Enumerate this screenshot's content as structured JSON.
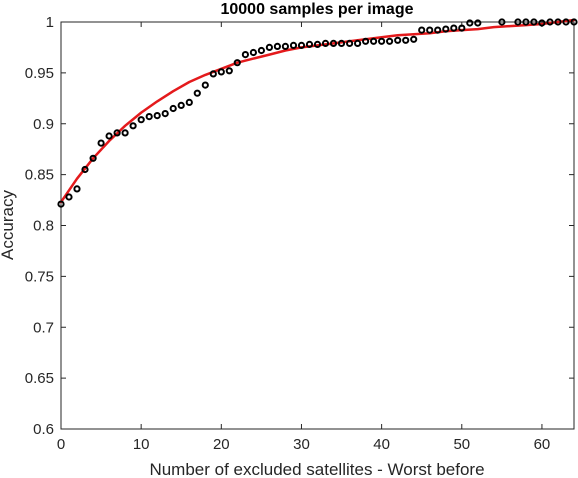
{
  "chart_data": {
    "type": "scatter",
    "title": "10000 samples per image",
    "xlabel": "Number of excluded satellites - Worst before",
    "ylabel": "Accuracy",
    "xlim": [
      0,
      64
    ],
    "ylim": [
      0.6,
      1.0
    ],
    "xticks": [
      "0",
      "10",
      "20",
      "30",
      "40",
      "50",
      "60"
    ],
    "yticks": [
      "0.6",
      "0.65",
      "0.7",
      "0.75",
      "0.8",
      "0.85",
      "0.9",
      "0.95",
      "1"
    ],
    "grid": false,
    "box": true,
    "series": [
      {
        "kind": "markers",
        "marker": "circle",
        "color": "#000000",
        "x": [
          0,
          1,
          2,
          3,
          4,
          5,
          6,
          7,
          8,
          9,
          10,
          11,
          12,
          13,
          14,
          15,
          16,
          17,
          18,
          19,
          20,
          21,
          22,
          23,
          24,
          25,
          26,
          27,
          28,
          29,
          30,
          31,
          32,
          33,
          34,
          35,
          36,
          37,
          38,
          39,
          40,
          41,
          42,
          43,
          44,
          45,
          46,
          47,
          48,
          49,
          50,
          51,
          52,
          55,
          57,
          58,
          59,
          60,
          61,
          62,
          63,
          64
        ],
        "y": [
          0.821,
          0.828,
          0.836,
          0.855,
          0.866,
          0.881,
          0.888,
          0.891,
          0.891,
          0.898,
          0.904,
          0.907,
          0.908,
          0.91,
          0.915,
          0.918,
          0.921,
          0.93,
          0.938,
          0.949,
          0.951,
          0.952,
          0.96,
          0.968,
          0.97,
          0.972,
          0.975,
          0.976,
          0.976,
          0.977,
          0.977,
          0.978,
          0.978,
          0.979,
          0.979,
          0.979,
          0.979,
          0.979,
          0.981,
          0.981,
          0.981,
          0.981,
          0.982,
          0.982,
          0.983,
          0.992,
          0.992,
          0.992,
          0.993,
          0.994,
          0.994,
          0.999,
          0.999,
          1.0,
          1.0,
          1.0,
          1.0,
          0.999,
          1.0,
          1.0,
          1.0,
          1.0
        ]
      },
      {
        "kind": "line",
        "color": "#e41a1c",
        "x": [
          0,
          2,
          4,
          6,
          8,
          10,
          12,
          14,
          16,
          18,
          20,
          22,
          24,
          26,
          28,
          30,
          32,
          34,
          36,
          38,
          40,
          42,
          44,
          46,
          48,
          50,
          52,
          54,
          56,
          58,
          60,
          62,
          64
        ],
        "y": [
          0.823,
          0.846,
          0.866,
          0.883,
          0.898,
          0.911,
          0.922,
          0.932,
          0.941,
          0.948,
          0.954,
          0.96,
          0.964,
          0.968,
          0.972,
          0.975,
          0.977,
          0.979,
          0.981,
          0.983,
          0.985,
          0.987,
          0.988,
          0.989,
          0.991,
          0.992,
          0.993,
          0.995,
          0.996,
          0.997,
          0.998,
          1.0,
          1.002
        ]
      }
    ]
  }
}
